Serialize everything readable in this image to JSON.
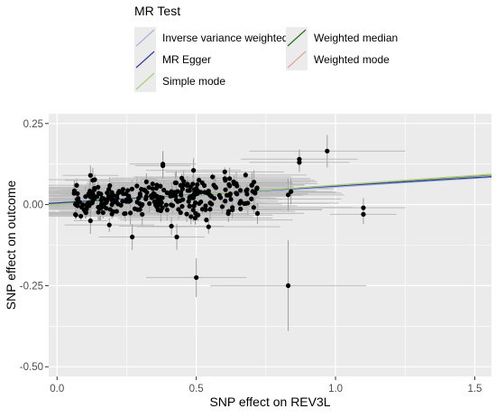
{
  "legend": {
    "title": "MR Test",
    "items": [
      {
        "label": "Inverse variance weighted",
        "color": "#a5b4e2",
        "slope": 0.0538
      },
      {
        "label": "Weighted median",
        "color": "#2e6b1f",
        "slope": 0.0585
      },
      {
        "label": "MR Egger",
        "color": "#2c3f9a",
        "slope": 0.052,
        "intercept": 0.005
      },
      {
        "label": "Weighted mode",
        "color": "#e3a59a",
        "slope": 0.06
      },
      {
        "label": "Simple mode",
        "color": "#a8cf7a",
        "slope": 0.0595
      }
    ]
  },
  "chart_data": {
    "type": "scatter",
    "xlabel": "SNP effect on REV3L",
    "ylabel": "SNP effect on outcome",
    "xlim": [
      -0.03,
      1.56
    ],
    "ylim": [
      -0.53,
      0.28
    ],
    "x_ticks": [
      0.0,
      0.5,
      1.0,
      1.5
    ],
    "x_tick_labels": [
      "0.0",
      "0.5",
      "1.0",
      "1.5"
    ],
    "y_ticks": [
      0.25,
      0.0,
      -0.25,
      -0.5
    ],
    "y_tick_labels": [
      "0.25",
      "0.00",
      "-0.25",
      "-0.50"
    ],
    "grid": true,
    "outliers": [
      {
        "x": 0.97,
        "y": 0.165,
        "xerr": 0.28,
        "yerr": 0.05
      },
      {
        "x": 0.87,
        "y": 0.14,
        "xerr": 0.21,
        "yerr": 0.03
      },
      {
        "x": 0.87,
        "y": 0.13,
        "xerr": 0.18,
        "yerr": 0.03
      },
      {
        "x": 0.83,
        "y": -0.25,
        "xerr": 0.28,
        "yerr": 0.14
      },
      {
        "x": 1.1,
        "y": -0.01,
        "xerr": 0.15,
        "yerr": 0.03
      },
      {
        "x": 1.1,
        "y": -0.03,
        "xerr": 0.12,
        "yerr": 0.03
      },
      {
        "x": 0.5,
        "y": -0.225,
        "xerr": 0.18,
        "yerr": 0.06
      },
      {
        "x": 0.83,
        "y": 0.03,
        "xerr": 0.2,
        "yerr": 0.05
      },
      {
        "x": 0.84,
        "y": 0.04,
        "xerr": 0.15,
        "yerr": 0.04
      },
      {
        "x": 0.12,
        "y": 0.09,
        "xerr": 0.1,
        "yerr": 0.03
      },
      {
        "x": 0.38,
        "y": 0.125,
        "xerr": 0.12,
        "yerr": 0.04
      },
      {
        "x": 0.38,
        "y": 0.12,
        "xerr": 0.1,
        "yerr": 0.04
      },
      {
        "x": 0.27,
        "y": -0.1,
        "xerr": 0.12,
        "yerr": 0.04
      },
      {
        "x": 0.43,
        "y": -0.1,
        "xerr": 0.1,
        "yerr": 0.04
      },
      {
        "x": 0.12,
        "y": -0.05,
        "xerr": 0.06,
        "yerr": 0.04
      },
      {
        "x": 0.7,
        "y": 0.06,
        "xerr": 0.15,
        "yerr": 0.04
      }
    ],
    "cluster": {
      "n": 300,
      "x_range": [
        0.06,
        0.72
      ],
      "y_sd": 0.028,
      "slope": 0.055
    }
  }
}
